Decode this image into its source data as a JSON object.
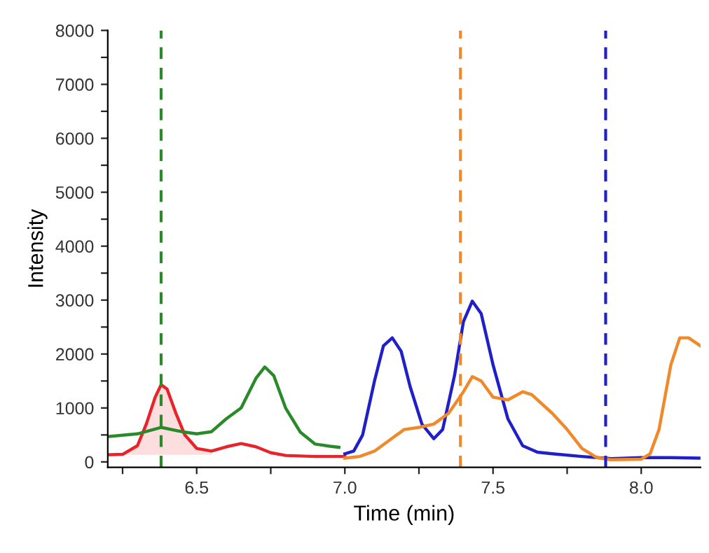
{
  "chart_data": {
    "type": "line",
    "xlabel": "Time (min)",
    "ylabel": "Intensity",
    "xlim": [
      6.2,
      8.2
    ],
    "ylim": [
      -100,
      8000
    ],
    "xticks": [
      {
        "value": 6.25,
        "label": null
      },
      6.5,
      {
        "value": 6.75,
        "label": null
      },
      {
        "value": 7,
        "label": "7.0"
      },
      {
        "value": 7.25,
        "label": null
      },
      7.5,
      {
        "value": 7.75,
        "label": null
      },
      {
        "value": 8,
        "label": "8.0"
      }
    ],
    "yticks": [
      0,
      {
        "value": 500,
        "label": null
      },
      1000,
      {
        "value": 1500,
        "label": null
      },
      2000,
      {
        "value": 2500,
        "label": null
      },
      3000,
      {
        "value": 3500,
        "label": null
      },
      4000,
      {
        "value": 4500,
        "label": null
      },
      5000,
      {
        "value": 5500,
        "label": null
      },
      6000,
      {
        "value": 6500,
        "label": null
      },
      7000,
      {
        "value": 7500,
        "label": null
      },
      8000
    ],
    "grid": false,
    "legend": false,
    "line_style": "solid",
    "series": [
      {
        "color": "#e8242a",
        "x": [
          6.2,
          6.25,
          6.3,
          6.33,
          6.36,
          6.38,
          6.4,
          6.43,
          6.46,
          6.5,
          6.55,
          6.6,
          6.65,
          6.7,
          6.75,
          6.8,
          6.9,
          7.0
        ],
        "values": [
          130,
          140,
          300,
          700,
          1200,
          1430,
          1350,
          900,
          500,
          250,
          200,
          280,
          340,
          280,
          170,
          120,
          100,
          100
        ],
        "lower": [
          130,
          130,
          130,
          130,
          130,
          130,
          130,
          130,
          130,
          130,
          130,
          null,
          null,
          null,
          null,
          null,
          null,
          null
        ],
        "upper": [
          130,
          140,
          300,
          700,
          1200,
          1430,
          1350,
          900,
          500,
          250,
          200,
          null,
          null,
          null,
          null,
          null,
          null,
          null
        ]
      },
      {
        "color": "#2a8a2a",
        "x": [
          6.2,
          6.3,
          6.38,
          6.45,
          6.5,
          6.55,
          6.6,
          6.65,
          6.7,
          6.73,
          6.76,
          6.8,
          6.85,
          6.9,
          6.95,
          6.98
        ],
        "values": [
          470,
          520,
          640,
          560,
          520,
          560,
          800,
          1000,
          1550,
          1760,
          1600,
          1000,
          550,
          330,
          290,
          270
        ]
      },
      {
        "color": "#2020c8",
        "x": [
          7.0,
          7.03,
          7.06,
          7.1,
          7.13,
          7.16,
          7.19,
          7.22,
          7.26,
          7.3,
          7.33,
          7.37,
          7.4,
          7.43,
          7.46,
          7.5,
          7.55,
          7.6,
          7.65,
          7.7,
          7.8,
          7.9,
          8.0,
          8.1,
          8.2
        ],
        "values": [
          150,
          200,
          500,
          1500,
          2150,
          2300,
          2050,
          1400,
          700,
          430,
          600,
          1600,
          2600,
          2980,
          2750,
          1800,
          800,
          300,
          180,
          150,
          100,
          60,
          80,
          80,
          70
        ]
      },
      {
        "color": "#f0892a",
        "x": [
          7.0,
          7.05,
          7.1,
          7.15,
          7.2,
          7.25,
          7.3,
          7.35,
          7.4,
          7.43,
          7.46,
          7.5,
          7.55,
          7.6,
          7.63,
          7.7,
          7.75,
          7.8,
          7.85,
          7.9,
          8.0,
          8.03,
          8.06,
          8.1,
          8.13,
          8.16,
          8.2
        ],
        "values": [
          70,
          100,
          200,
          400,
          600,
          640,
          700,
          900,
          1300,
          1580,
          1500,
          1200,
          1150,
          1300,
          1250,
          900,
          600,
          250,
          80,
          40,
          50,
          150,
          600,
          1800,
          2300,
          2300,
          2150
        ]
      }
    ],
    "ref_lines": [
      {
        "axis": "x",
        "value": 6.38,
        "color": "#2a8a2a",
        "line_style": "dashed"
      },
      {
        "axis": "x",
        "value": 7.39,
        "color": "#f0892a",
        "line_style": "dashed"
      },
      {
        "axis": "x",
        "value": 7.88,
        "color": "#2020c8",
        "line_style": "dashed"
      }
    ]
  }
}
